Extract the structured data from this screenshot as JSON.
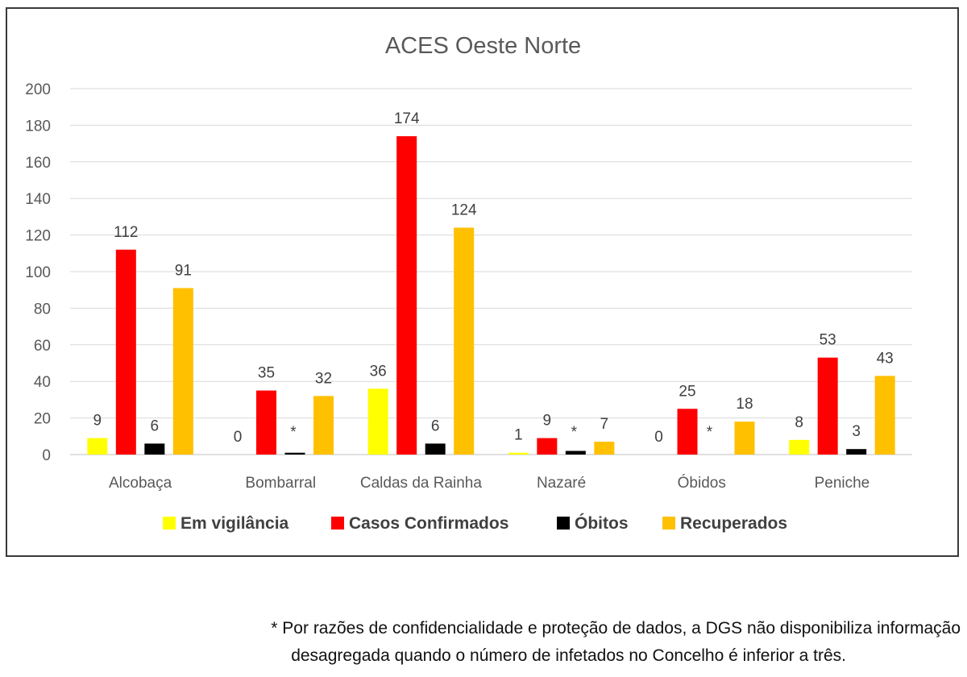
{
  "chart_data": {
    "type": "bar",
    "title": "ACES Oeste Norte",
    "xlabel": "",
    "ylabel": "",
    "ylim": [
      0,
      200
    ],
    "yticks": [
      "0",
      "20",
      "40",
      "60",
      "80",
      "100",
      "120",
      "140",
      "160",
      "180",
      "200"
    ],
    "grid": true,
    "legend_position": "bottom",
    "categories": [
      "Alcobaça",
      "Bombarral",
      "Caldas da Rainha",
      "Nazaré",
      "Óbidos",
      "Peniche"
    ],
    "series": [
      {
        "name": "Em vigilância",
        "color": "#ffff00",
        "values": [
          9,
          0,
          36,
          1,
          0,
          8
        ],
        "labels": [
          "9",
          "0",
          "36",
          "1",
          "0",
          "8"
        ]
      },
      {
        "name": "Casos Confirmados",
        "color": "#ff0000",
        "values": [
          112,
          35,
          174,
          9,
          25,
          53
        ],
        "labels": [
          "112",
          "35",
          "174",
          "9",
          "25",
          "53"
        ]
      },
      {
        "name": "Óbitos",
        "color": "#000000",
        "values": [
          6,
          1,
          6,
          2,
          0,
          3
        ],
        "labels": [
          "6",
          "*",
          "6",
          "*",
          "*",
          "3"
        ]
      },
      {
        "name": "Recuperados",
        "color": "#ffc000",
        "values": [
          91,
          32,
          124,
          7,
          18,
          43
        ],
        "labels": [
          "91",
          "32",
          "124",
          "7",
          "18",
          "43"
        ]
      }
    ]
  },
  "footnote": {
    "line1": "* Por razões de confidencialidade e proteção de dados, a DGS não disponibiliza informação",
    "line2": "desagregada quando o número de infetados no Concelho é inferior a três."
  }
}
